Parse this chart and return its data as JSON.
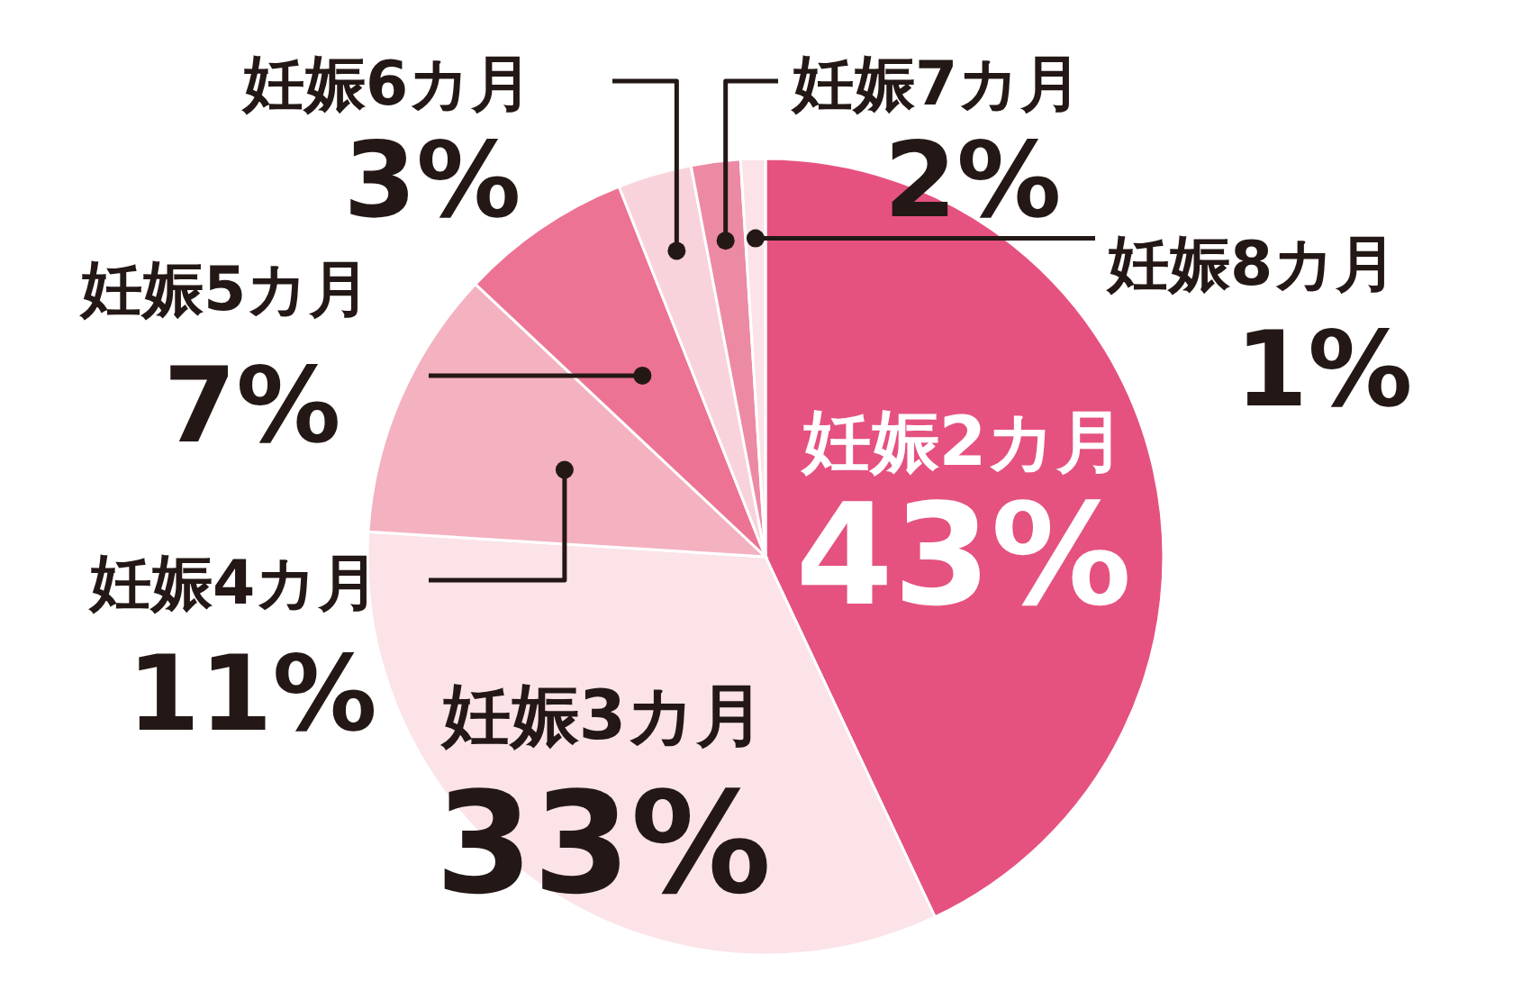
{
  "chart_data": {
    "type": "pie",
    "categories": [
      "妊娠2カ月",
      "妊娠3カ月",
      "妊娠4カ月",
      "妊娠5カ月",
      "妊娠6カ月",
      "妊娠7カ月",
      "妊娠8カ月"
    ],
    "values": [
      43,
      33,
      11,
      7,
      3,
      2,
      1
    ],
    "value_labels": [
      "43%",
      "33%",
      "11%",
      "7%",
      "3%",
      "2%",
      "1%"
    ],
    "colors": [
      "#e5527f",
      "#fbe3e8",
      "#f4b1c0",
      "#ec7393",
      "#f9d3dc",
      "#ec8aa4",
      "#fbe3e8"
    ]
  }
}
